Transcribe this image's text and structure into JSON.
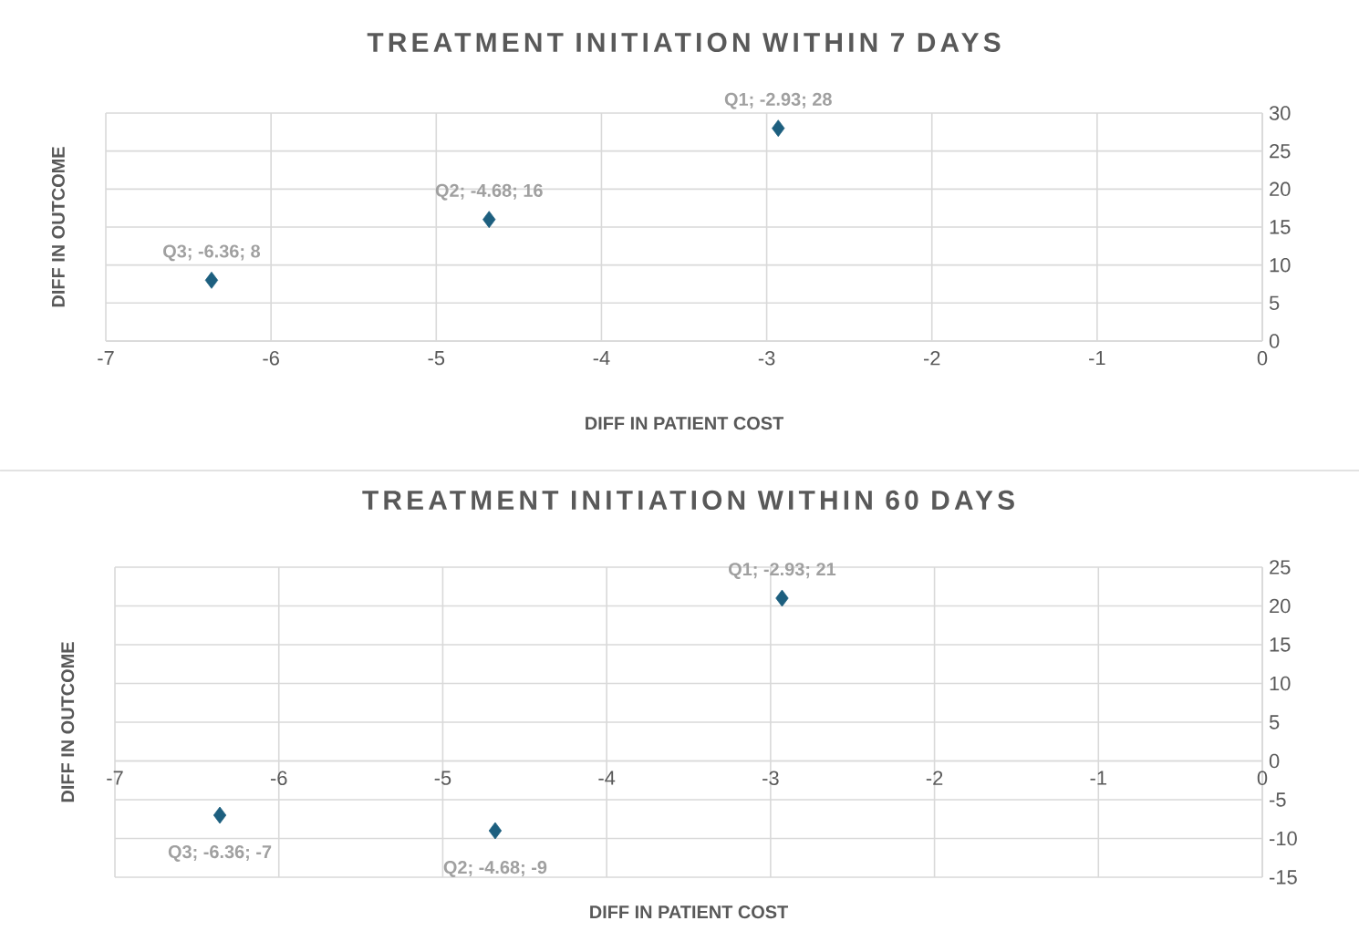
{
  "chart_data": [
    {
      "type": "scatter",
      "title": "TREATMENT INITIATION WITHIN 7 DAYS",
      "xlabel": "DIFF IN PATIENT COST",
      "ylabel": "DIFF IN OUTCOME",
      "series": [
        {
          "color": "#1d5f7f",
          "x": [
            -2.93,
            -4.68,
            -6.36
          ],
          "values": [
            28,
            16,
            8
          ]
        }
      ],
      "xlim": [
        -7,
        0
      ],
      "ylim": [
        0,
        30
      ],
      "xticks": [
        -7,
        -6,
        -5,
        -4,
        -3,
        -2,
        -1,
        0
      ],
      "yticks": [
        0,
        5,
        10,
        15,
        20,
        25,
        30
      ],
      "grid": true,
      "marker": "diamond",
      "annotations": [
        {
          "text": "Q1; -2.93; 28",
          "x": -2.93,
          "y": 28
        },
        {
          "text": "Q2; -4.68; 16",
          "x": -4.68,
          "y": 16
        },
        {
          "text": "Q3; -6.36; 8",
          "x": -6.36,
          "y": 8
        }
      ]
    },
    {
      "type": "scatter",
      "title": "TREATMENT INITIATION WITHIN 60 DAYS",
      "xlabel": "DIFF IN PATIENT COST",
      "ylabel": "DIFF IN OUTCOME",
      "series": [
        {
          "color": "#1d5f7f",
          "x": [
            -2.93,
            -4.68,
            -6.36
          ],
          "values": [
            21,
            -9,
            -7
          ]
        }
      ],
      "xlim": [
        -7,
        0
      ],
      "ylim": [
        -15,
        25
      ],
      "xticks": [
        -7,
        -6,
        -5,
        -4,
        -3,
        -2,
        -1,
        0
      ],
      "yticks": [
        -15,
        -10,
        -5,
        0,
        5,
        10,
        15,
        20,
        25
      ],
      "grid": true,
      "marker": "diamond",
      "annotations": [
        {
          "text": "Q1; -2.93; 21",
          "x": -2.93,
          "y": 21
        },
        {
          "text": "Q2; -4.68; -9",
          "x": -4.68,
          "y": -9
        },
        {
          "text": "Q3; -6.36; -7",
          "x": -6.36,
          "y": -7
        }
      ]
    }
  ]
}
